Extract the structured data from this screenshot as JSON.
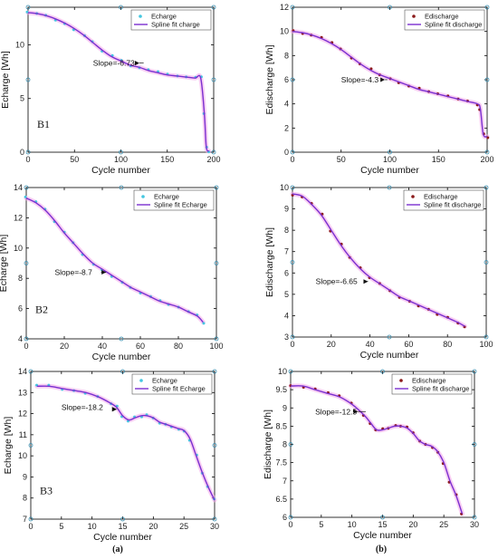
{
  "colors": {
    "charge_marker": "#44c7e0",
    "discharge_marker": "#8b1a1a",
    "spline": "#7a2fd0",
    "halo": "#f4a6ea",
    "frame_marker": "#3a8fb0"
  },
  "column_labels": [
    "(a)",
    "(b)"
  ],
  "chart_data": [
    {
      "type": "scatter",
      "panel": "B1 charge",
      "tag": "B1",
      "xlabel": "Cycle number",
      "ylabel": "Echarge [Wh]",
      "xlim": [
        0,
        200
      ],
      "ylim": [
        0,
        13.5
      ],
      "xticks": [
        0,
        50,
        100,
        150,
        200
      ],
      "yticks": [
        0,
        5,
        10
      ],
      "legend": [
        "Echarge",
        "Spline fit charge"
      ],
      "legend_position": "top-right",
      "annotation": {
        "text": "Slope=-6.73",
        "x": 70,
        "y": 8.3,
        "arrow_to": [
          120,
          8.3
        ]
      },
      "series": [
        {
          "x": [
            0,
            10,
            20,
            30,
            40,
            50,
            60,
            70,
            80,
            90,
            100,
            110,
            120,
            130,
            140,
            150,
            160,
            170,
            180,
            186,
            190,
            192,
            195
          ],
          "values": [
            13.0,
            12.9,
            12.7,
            12.4,
            12.0,
            11.5,
            10.9,
            10.2,
            9.5,
            8.9,
            8.5,
            8.1,
            7.9,
            7.6,
            7.4,
            7.2,
            7.1,
            7.0,
            6.9,
            6.9,
            3.5,
            0.5,
            0.1
          ]
        }
      ]
    },
    {
      "type": "scatter",
      "panel": "B1 discharge",
      "tag": "",
      "xlabel": "Cycle number",
      "ylabel": "Edischarge [Wh]",
      "xlim": [
        0,
        200
      ],
      "ylim": [
        0,
        12
      ],
      "xticks": [
        0,
        50,
        100,
        150,
        200
      ],
      "yticks": [
        0,
        2,
        4,
        6,
        8,
        10,
        12
      ],
      "legend": [
        "Edischarge",
        "Spline fit discharge"
      ],
      "legend_position": "top-right",
      "annotation": {
        "text": "Slope=-4.3",
        "x": 50,
        "y": 6.0,
        "arrow_to": [
          95,
          6.0
        ]
      },
      "series": [
        {
          "x": [
            0,
            10,
            20,
            30,
            40,
            50,
            60,
            70,
            80,
            90,
            100,
            110,
            120,
            130,
            140,
            150,
            160,
            170,
            180,
            190,
            193,
            196,
            200
          ],
          "values": [
            10.0,
            9.9,
            9.7,
            9.4,
            9.0,
            8.5,
            7.9,
            7.3,
            6.8,
            6.4,
            6.1,
            5.8,
            5.5,
            5.2,
            5.0,
            4.8,
            4.6,
            4.4,
            4.2,
            4.0,
            3.6,
            1.5,
            1.3
          ]
        }
      ]
    },
    {
      "type": "scatter",
      "panel": "B2 charge",
      "tag": "B2",
      "xlabel": "Cycle number",
      "ylabel": "Echarge [Wh]",
      "xlim": [
        0,
        100
      ],
      "ylim": [
        4,
        14
      ],
      "xticks": [
        0,
        20,
        40,
        60,
        80,
        100
      ],
      "yticks": [
        4,
        6,
        8,
        10,
        12,
        14
      ],
      "legend": [
        "Echarge",
        "Spline fit Echarge"
      ],
      "legend_position": "top-right",
      "annotation": {
        "text": "Slope=-8.7",
        "x": 15,
        "y": 8.4,
        "arrow_to": [
          42,
          8.4
        ]
      },
      "series": [
        {
          "x": [
            0,
            5,
            10,
            15,
            20,
            25,
            30,
            35,
            40,
            45,
            50,
            55,
            60,
            65,
            70,
            75,
            80,
            85,
            90,
            93
          ],
          "values": [
            13.3,
            13.0,
            12.5,
            11.8,
            11.0,
            10.3,
            9.6,
            9.0,
            8.6,
            8.2,
            7.8,
            7.4,
            7.1,
            6.8,
            6.5,
            6.3,
            6.1,
            5.8,
            5.5,
            5.1
          ]
        }
      ]
    },
    {
      "type": "scatter",
      "panel": "B2 discharge",
      "tag": "",
      "xlabel": "Cycle number",
      "ylabel": "Edischarge [Wh]",
      "xlim": [
        0,
        100
      ],
      "ylim": [
        3,
        10
      ],
      "xticks": [
        0,
        20,
        40,
        60,
        80,
        100
      ],
      "yticks": [
        3,
        4,
        5,
        6,
        7,
        8,
        9,
        10
      ],
      "legend": [
        "Edischarge",
        "Spline fit discharge"
      ],
      "legend_position": "top-right",
      "annotation": {
        "text": "Slope=-6.65",
        "x": 12,
        "y": 5.6,
        "arrow_to": [
          39,
          5.6
        ]
      },
      "series": [
        {
          "x": [
            0,
            5,
            10,
            15,
            20,
            25,
            30,
            35,
            40,
            45,
            50,
            55,
            60,
            65,
            70,
            75,
            80,
            85,
            89
          ],
          "values": [
            9.7,
            9.6,
            9.2,
            8.7,
            8.0,
            7.3,
            6.7,
            6.2,
            5.8,
            5.5,
            5.2,
            4.9,
            4.7,
            4.5,
            4.3,
            4.1,
            3.9,
            3.7,
            3.5
          ]
        }
      ]
    },
    {
      "type": "scatter",
      "panel": "B3 charge",
      "tag": "B3",
      "xlabel": "Cycle number",
      "ylabel": "Echarge [Wh]",
      "xlim": [
        0,
        30
      ],
      "ylim": [
        7,
        14
      ],
      "xticks": [
        0,
        5,
        10,
        15,
        20,
        25,
        30
      ],
      "yticks": [
        7,
        8,
        9,
        10,
        11,
        12,
        13,
        14
      ],
      "legend": [
        "Echarge",
        "Spline fit Echarge"
      ],
      "legend_position": "top-right",
      "annotation": {
        "text": "Slope=-18.2",
        "x": 5,
        "y": 12.3,
        "arrow_to": [
          14,
          12.2
        ]
      },
      "series": [
        {
          "x": [
            1,
            3,
            5,
            7,
            9,
            11,
            13,
            14,
            15,
            16,
            17,
            18,
            19,
            20,
            21,
            22,
            23,
            24,
            25,
            26,
            27,
            28,
            29,
            30
          ],
          "values": [
            13.3,
            13.3,
            13.2,
            13.1,
            13.0,
            12.8,
            12.5,
            12.3,
            11.9,
            11.7,
            11.8,
            11.9,
            11.9,
            11.8,
            11.6,
            11.5,
            11.4,
            11.3,
            11.2,
            10.8,
            10.0,
            9.2,
            8.5,
            7.9
          ]
        }
      ]
    },
    {
      "type": "scatter",
      "panel": "B3 discharge",
      "tag": "",
      "xlabel": "Cycle number",
      "ylabel": "Edischarge [Wh]",
      "xlim": [
        0,
        30
      ],
      "ylim": [
        6,
        10
      ],
      "xticks": [
        0,
        5,
        10,
        15,
        20,
        25,
        30
      ],
      "yticks": [
        6,
        6.5,
        7,
        7.5,
        8,
        8.5,
        9,
        9.5,
        10
      ],
      "legend": [
        "Edischarge",
        "Spline fit discharge"
      ],
      "legend_position": "top-right",
      "annotation": {
        "text": "Slope=-12.5",
        "x": 4,
        "y": 8.9,
        "arrow_to": [
          11,
          8.9
        ]
      },
      "series": [
        {
          "x": [
            0,
            2,
            4,
            6,
            8,
            10,
            12,
            13,
            14,
            15,
            16,
            17,
            18,
            19,
            20,
            21,
            22,
            23,
            24,
            25,
            26,
            27,
            28
          ],
          "values": [
            9.6,
            9.6,
            9.5,
            9.4,
            9.3,
            9.1,
            8.8,
            8.6,
            8.4,
            8.4,
            8.45,
            8.5,
            8.5,
            8.45,
            8.3,
            8.1,
            8.0,
            7.95,
            7.8,
            7.5,
            7.0,
            6.6,
            6.1
          ]
        }
      ]
    }
  ]
}
